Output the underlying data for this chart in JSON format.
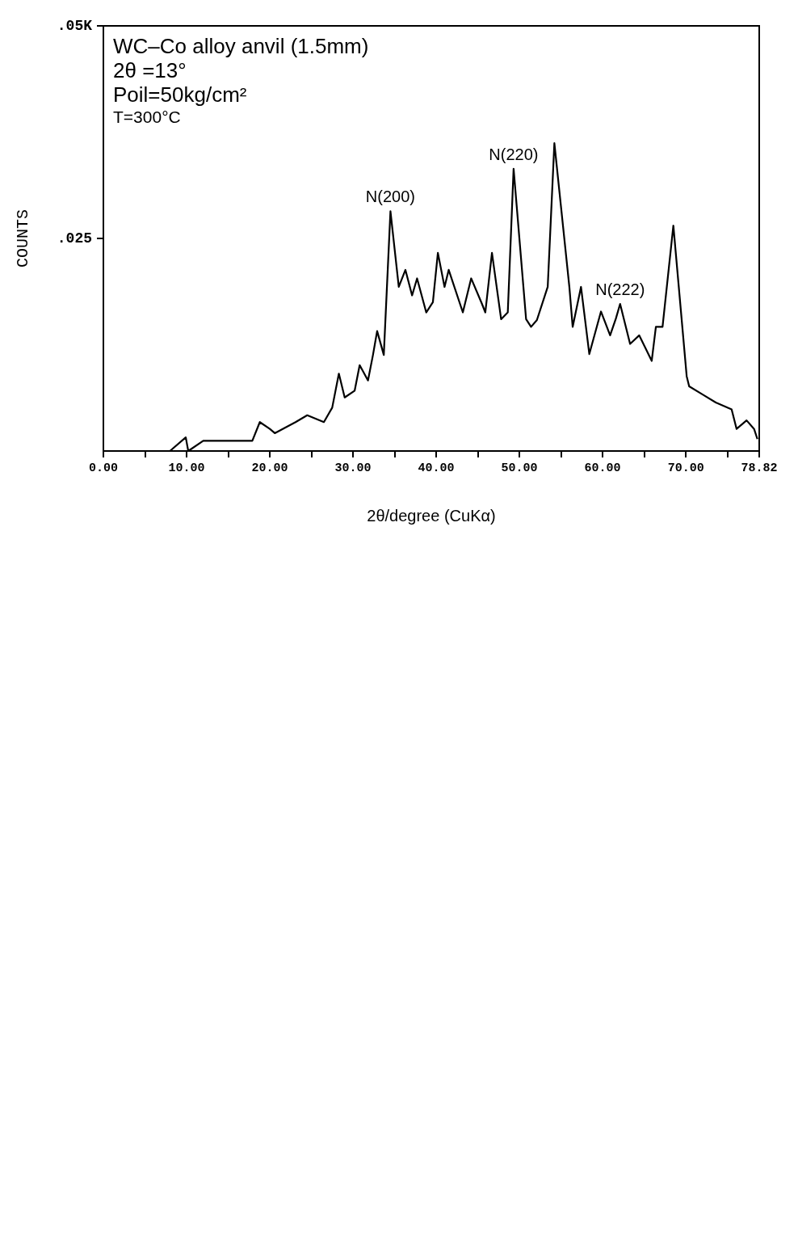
{
  "chart_data": {
    "type": "line",
    "title": "WC–Co alloy anvil (1.5mm)",
    "xlabel": "2θ/degree (CuKα)",
    "ylabel": "COUNTS",
    "annotations": [
      "2θ =13°",
      "Poil=50kg/cm²",
      "T=300°C",
      {
        "text": "N(200)",
        "x": 34.5,
        "y": 0.0282
      },
      {
        "text": "N(220)",
        "x": 49.3,
        "y": 0.0332
      },
      {
        "text": "N(222)",
        "x": 62.1,
        "y": 0.0173
      }
    ],
    "series": [
      {
        "color": "#000000",
        "x": [
          8.0,
          9.9,
          10.2,
          12.0,
          15.1,
          17.9,
          18.8,
          20.0,
          20.6,
          23.1,
          24.5,
          26.5,
          27.5,
          28.3,
          29.0,
          30.2,
          30.8,
          31.8,
          32.4,
          32.9,
          33.7,
          34.5,
          35.5,
          36.3,
          37.1,
          37.7,
          38.8,
          39.6,
          40.2,
          41.0,
          41.5,
          43.2,
          44.2,
          45.5,
          45.9,
          46.7,
          47.8,
          48.6,
          49.3,
          50.8,
          51.4,
          52.1,
          53.4,
          54.2,
          56.0,
          56.4,
          57.4,
          58.4,
          59.8,
          60.9,
          61.6,
          62.1,
          63.3,
          64.4,
          65.9,
          66.4,
          67.2,
          68.5,
          70.1,
          70.4,
          72.1,
          73.6,
          75.5,
          76.1,
          77.3,
          78.2,
          78.6
        ],
        "values": [
          0,
          0.0016,
          0,
          0.0012,
          0.0012,
          0.0012,
          0.0034,
          0.0026,
          0.0021,
          0.0034,
          0.0042,
          0.0034,
          0.0051,
          0.0091,
          0.0063,
          0.0071,
          0.0101,
          0.0083,
          0.0113,
          0.0141,
          0.0113,
          0.0282,
          0.0193,
          0.0213,
          0.0183,
          0.0203,
          0.0163,
          0.0175,
          0.0233,
          0.0193,
          0.0213,
          0.0163,
          0.0203,
          0.0173,
          0.0163,
          0.0233,
          0.0155,
          0.0163,
          0.0332,
          0.0155,
          0.0146,
          0.0154,
          0.0193,
          0.0362,
          0.0193,
          0.0146,
          0.0193,
          0.0114,
          0.0164,
          0.0136,
          0.0156,
          0.0173,
          0.0126,
          0.0136,
          0.0106,
          0.0146,
          0.0146,
          0.0265,
          0.0088,
          0.0076,
          0.0066,
          0.0057,
          0.0049,
          0.0026,
          0.0036,
          0.0026,
          0.0014
        ]
      }
    ],
    "xlim": [
      0,
      78.82
    ],
    "xticks": [
      {
        "value": 0,
        "label": "0.00"
      },
      {
        "value": 5,
        "label": null
      },
      {
        "value": 10,
        "label": "10.00"
      },
      {
        "value": 15,
        "label": null
      },
      {
        "value": 20,
        "label": "20.00"
      },
      {
        "value": 25,
        "label": null
      },
      {
        "value": 30,
        "label": "30.00"
      },
      {
        "value": 35,
        "label": null
      },
      {
        "value": 40,
        "label": "40.00"
      },
      {
        "value": 45,
        "label": null
      },
      {
        "value": 50,
        "label": "50.00"
      },
      {
        "value": 55,
        "label": null
      },
      {
        "value": 60,
        "label": "60.00"
      },
      {
        "value": 65,
        "label": null
      },
      {
        "value": 70,
        "label": "70.00"
      },
      {
        "value": 75,
        "label": null
      },
      {
        "value": 78.82,
        "label": "78.82"
      }
    ],
    "ylim": [
      0,
      0.05
    ],
    "yticks": [
      {
        "value": 0.025,
        "label": ".025"
      },
      {
        "value": 0.05,
        "label": ".05K"
      }
    ]
  }
}
